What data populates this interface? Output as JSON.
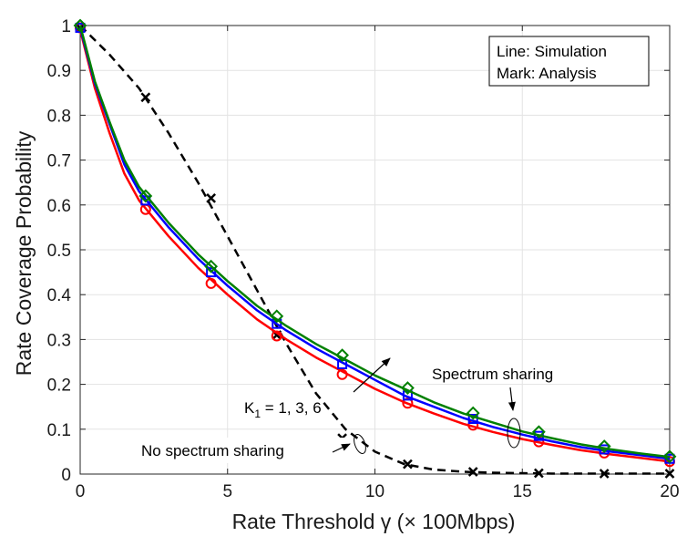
{
  "chart_data": {
    "type": "line",
    "xlabel": "Rate Threshold γ (× 100Mbps)",
    "ylabel": "Rate Coverage Probability",
    "xlim": [
      0,
      20
    ],
    "ylim": [
      0,
      1
    ],
    "xticks": [
      "0",
      "5",
      "10",
      "15",
      "20"
    ],
    "yticks": [
      "0",
      "0.1",
      "0.2",
      "0.3",
      "0.4",
      "0.5",
      "0.6",
      "0.7",
      "0.8",
      "0.9",
      "1"
    ],
    "grid": true,
    "legend": {
      "position": "top-right",
      "line1": "Line: Simulation",
      "line2": "Mark: Analysis"
    },
    "series": [
      {
        "name": "No spectrum sharing",
        "color": "#000000",
        "style": "dashed",
        "marker": "x",
        "line": {
          "x": [
            0,
            1,
            2,
            3,
            4,
            5,
            6,
            7,
            8,
            9,
            10,
            11,
            12,
            13,
            14,
            15,
            16,
            17,
            18,
            19,
            20
          ],
          "y": [
            1.0,
            0.935,
            0.86,
            0.76,
            0.65,
            0.53,
            0.41,
            0.29,
            0.18,
            0.1,
            0.05,
            0.022,
            0.01,
            0.005,
            0.003,
            0.002,
            0.001,
            0.001,
            0.001,
            0.001,
            0.001
          ]
        },
        "marks": {
          "x": [
            0,
            2.22,
            4.44,
            6.67,
            8.89,
            11.11,
            13.33,
            15.56,
            17.78,
            20
          ],
          "y": [
            0.995,
            0.84,
            0.615,
            0.31,
            0.08,
            0.022,
            0.005,
            0.002,
            0.001,
            0.001
          ]
        }
      },
      {
        "name": "K1 = 1",
        "color": "#ff0000",
        "style": "solid",
        "marker": "o",
        "line": {
          "x": [
            0,
            0.5,
            1,
            1.5,
            2,
            3,
            4,
            5,
            6,
            7,
            8,
            9,
            10,
            11,
            12,
            13,
            14,
            15,
            16,
            17,
            18,
            19,
            20
          ],
          "y": [
            0.99,
            0.86,
            0.76,
            0.67,
            0.61,
            0.53,
            0.46,
            0.4,
            0.345,
            0.3,
            0.26,
            0.225,
            0.19,
            0.16,
            0.135,
            0.112,
            0.094,
            0.078,
            0.065,
            0.053,
            0.044,
            0.036,
            0.028
          ]
        },
        "marks": {
          "x": [
            0,
            2.22,
            4.44,
            6.67,
            8.89,
            11.11,
            13.33,
            15.56,
            17.78,
            20
          ],
          "y": [
            0.995,
            0.59,
            0.425,
            0.308,
            0.222,
            0.158,
            0.109,
            0.072,
            0.047,
            0.028
          ]
        }
      },
      {
        "name": "K1 = 3",
        "color": "#0000ff",
        "style": "solid",
        "marker": "s",
        "line": {
          "x": [
            0,
            0.5,
            1,
            1.5,
            2,
            3,
            4,
            5,
            6,
            7,
            8,
            9,
            10,
            11,
            12,
            13,
            14,
            15,
            16,
            17,
            18,
            19,
            20
          ],
          "y": [
            0.995,
            0.87,
            0.78,
            0.69,
            0.63,
            0.55,
            0.48,
            0.42,
            0.365,
            0.32,
            0.28,
            0.245,
            0.21,
            0.175,
            0.15,
            0.125,
            0.105,
            0.088,
            0.073,
            0.06,
            0.05,
            0.042,
            0.034
          ]
        },
        "marks": {
          "x": [
            0,
            2.22,
            4.44,
            6.67,
            8.89,
            11.11,
            13.33,
            15.56,
            17.78,
            20
          ],
          "y": [
            0.995,
            0.61,
            0.45,
            0.335,
            0.245,
            0.175,
            0.123,
            0.085,
            0.055,
            0.034
          ]
        }
      },
      {
        "name": "K1 = 6",
        "color": "#008000",
        "style": "solid",
        "marker": "d",
        "line": {
          "x": [
            0,
            0.5,
            1,
            1.5,
            2,
            3,
            4,
            5,
            6,
            7,
            8,
            9,
            10,
            11,
            12,
            13,
            14,
            15,
            16,
            17,
            18,
            19,
            20
          ],
          "y": [
            1.0,
            0.875,
            0.785,
            0.7,
            0.64,
            0.56,
            0.49,
            0.43,
            0.375,
            0.33,
            0.29,
            0.255,
            0.22,
            0.19,
            0.16,
            0.135,
            0.115,
            0.095,
            0.08,
            0.066,
            0.055,
            0.046,
            0.038
          ]
        },
        "marks": {
          "x": [
            0,
            2.22,
            4.44,
            6.67,
            8.89,
            11.11,
            13.33,
            15.56,
            17.78,
            20
          ],
          "y": [
            1.0,
            0.62,
            0.463,
            0.352,
            0.265,
            0.192,
            0.136,
            0.094,
            0.062,
            0.039
          ]
        }
      }
    ],
    "annotations": {
      "spectrum_sharing": "Spectrum sharing",
      "k1_prefix": "K",
      "k1_sub": "1",
      "k1_rest": " = 1, 3, 6",
      "no_spectrum_sharing": "No spectrum sharing"
    }
  }
}
